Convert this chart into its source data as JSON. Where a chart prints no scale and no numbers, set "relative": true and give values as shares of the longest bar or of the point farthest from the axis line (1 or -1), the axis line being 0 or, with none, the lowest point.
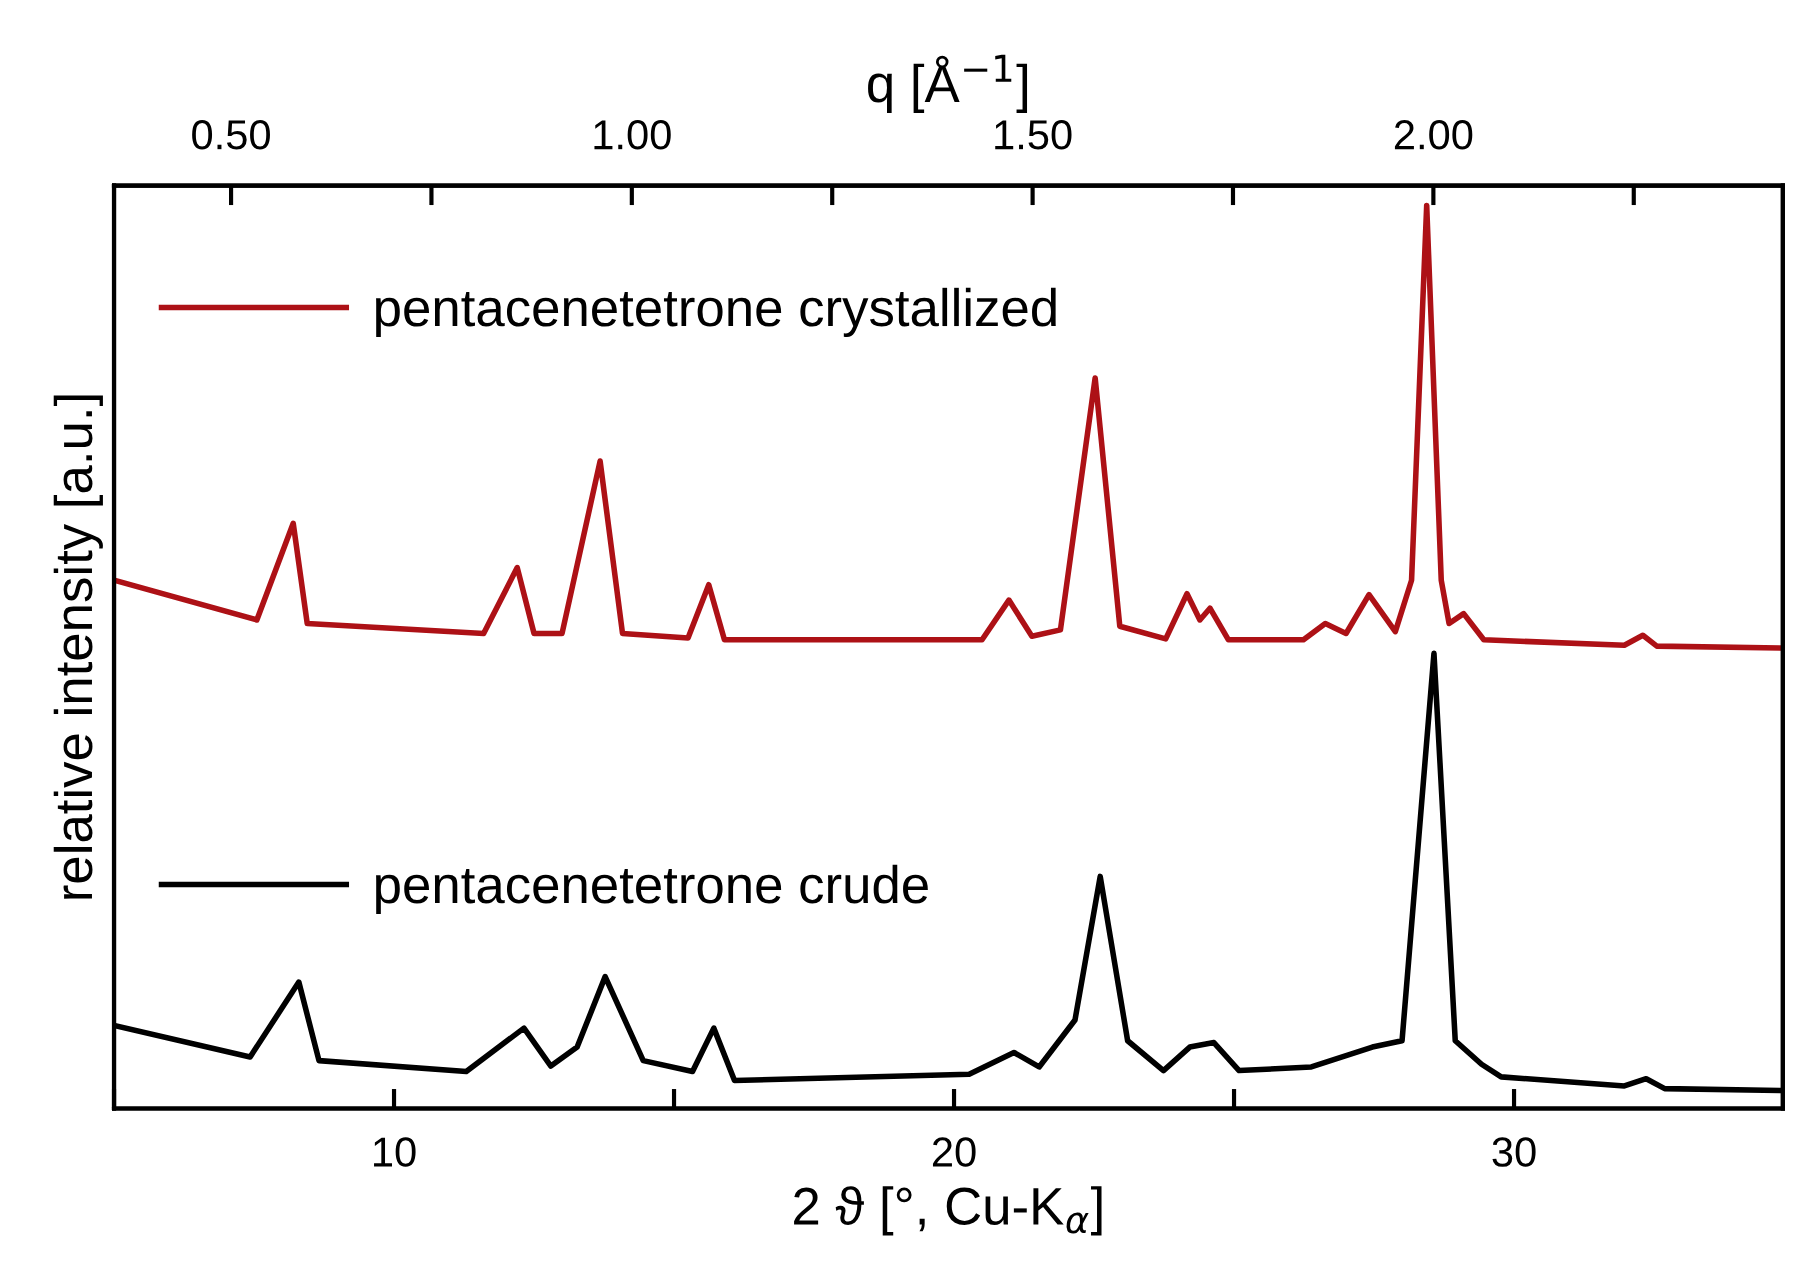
{
  "chart_data": {
    "type": "line",
    "relative": true,
    "xlabel": "2 ϑ [°, Cu-K$_{α}$]",
    "ylabel": "relative intensity [a.u.]",
    "x2label": "q [Å$^{−1}$]",
    "xlim": [
      5,
      34.8
    ],
    "xticks": [
      {
        "value": 5,
        "label": null
      },
      10,
      {
        "value": 15,
        "label": null
      },
      20,
      {
        "value": 25,
        "label": null
      },
      30
    ],
    "x2lim": [
      0.354,
      2.436
    ],
    "x2ticks": [
      {
        "value": 0.5,
        "label": "0.50"
      },
      {
        "value": 0.75,
        "label": null
      },
      {
        "value": 1.0,
        "label": "1.00"
      },
      {
        "value": 1.25,
        "label": null
      },
      {
        "value": 1.5,
        "label": "1.50"
      },
      {
        "value": 1.75,
        "label": null
      },
      {
        "value": 2.0,
        "label": "2.00"
      },
      {
        "value": 2.25,
        "label": null
      }
    ],
    "tick_labels": "x",
    "grid": false,
    "legend": "left",
    "marker": "none",
    "line_style": "solid",
    "series": [
      {
        "name": "pentacenetetrone crystallized",
        "color": "#ad1116",
        "x": [
          5.0,
          7.55,
          8.2,
          8.45,
          11.6,
          12.2,
          12.5,
          13.0,
          13.68,
          14.08,
          15.25,
          15.62,
          15.9,
          20.5,
          20.98,
          21.39,
          21.9,
          22.52,
          22.96,
          23.78,
          24.16,
          24.39,
          24.57,
          24.9,
          26.24,
          26.63,
          27.0,
          27.41,
          27.88,
          28.17,
          28.44,
          28.7,
          28.84,
          29.1,
          29.46,
          31.97,
          32.3,
          32.55,
          34.72
        ],
        "values": [
          0.585,
          0.541,
          0.648,
          0.537,
          0.526,
          0.599,
          0.526,
          0.526,
          0.717,
          0.526,
          0.521,
          0.58,
          0.519,
          0.519,
          0.563,
          0.523,
          0.53,
          0.809,
          0.534,
          0.52,
          0.57,
          0.541,
          0.554,
          0.519,
          0.519,
          0.537,
          0.526,
          0.569,
          0.528,
          0.585,
          1.0,
          0.585,
          0.537,
          0.548,
          0.519,
          0.513,
          0.524,
          0.512,
          0.51
        ]
      },
      {
        "name": "pentacenetetrone crude",
        "color": "#000000",
        "x": [
          5.0,
          7.43,
          8.3,
          8.66,
          11.29,
          12.32,
          12.8,
          13.27,
          13.77,
          14.45,
          15.33,
          15.71,
          16.08,
          20.27,
          21.07,
          21.52,
          22.16,
          22.61,
          23.1,
          23.74,
          24.21,
          24.64,
          25.09,
          26.38,
          27.47,
          28.0,
          28.57,
          28.95,
          29.42,
          29.77,
          31.97,
          32.36,
          32.69,
          34.72
        ],
        "values": [
          0.092,
          0.057,
          0.14,
          0.053,
          0.041,
          0.089,
          0.047,
          0.068,
          0.146,
          0.053,
          0.041,
          0.089,
          0.031,
          0.038,
          0.062,
          0.046,
          0.098,
          0.257,
          0.075,
          0.042,
          0.068,
          0.073,
          0.042,
          0.046,
          0.068,
          0.075,
          0.504,
          0.075,
          0.049,
          0.035,
          0.025,
          0.033,
          0.022,
          0.02
        ]
      }
    ]
  }
}
